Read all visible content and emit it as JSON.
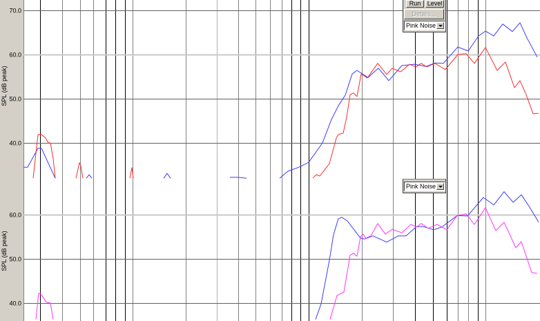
{
  "controls": {
    "run_label": "Run",
    "level_label": "Level",
    "details_label": "Details...",
    "signal_select_top": "Pink Noise",
    "signal_select_bottom": "Pink Noise"
  },
  "colors": {
    "series_blue": "#3a3aff",
    "series_red": "#ff2a2a",
    "series_magenta": "#ff33ff",
    "grid_dark": "#606060",
    "grid_light": "#c8c8c8",
    "gutter": "#d4d0c8"
  },
  "chart_data": [
    {
      "type": "line",
      "ylabel": "SPL (dB peak)",
      "ylim": [
        32,
        72.3
      ],
      "yticks": [
        "70.0",
        "60.0",
        "50.0",
        "40.0"
      ],
      "x_scale": "log (unlabeled)",
      "grid": true,
      "series": [
        {
          "color": "blue",
          "segments": [
            [
              34.5,
              34.5,
              38.8,
              38.8,
              32.0
            ],
            [
              32.0,
              32.8,
              32.0
            ],
            [
              32.0,
              33.1,
              32.0
            ],
            [
              32.2,
              32.2,
              32.0
            ],
            [
              32.0,
              33.6,
              34.5,
              35.6,
              40.0,
              45.3,
              48.4,
              50.8,
              55.6,
              56.4,
              54.8,
              56.9,
              54.1,
              57.5,
              57.8,
              57.3,
              58.1,
              58.0,
              61.7,
              60.8,
              64.2,
              65.3,
              64.2,
              66.9,
              65.2,
              67.2,
              63.8,
              59.4
            ]
          ]
        },
        {
          "color": "red",
          "segments": [
            [
              32.0,
              41.9,
              41.9,
              41.1,
              40.0,
              40.0,
              36.4,
              32.0
            ],
            [
              32.0,
              35.5,
              34.8,
              32.0
            ],
            [
              32.0,
              34.4,
              32.0
            ],
            [
              32.0,
              32.8,
              32.5,
              35.3,
              41.1,
              41.9,
              42.2,
              45.8,
              50.9,
              51.3,
              50.5,
              55.6,
              54.7,
              58.0,
              55.5,
              56.9,
              56.1,
              57.8,
              57.2,
              58.0,
              57.2,
              58.0,
              56.6,
              60.0,
              60.2,
              58.0,
              61.6,
              56.4,
              58.3,
              52.5,
              54.1,
              50.9,
              46.6,
              46.7
            ]
          ]
        }
      ]
    },
    {
      "type": "line",
      "ylabel": "SPL (dB peak)",
      "ylim": [
        36,
        67.7
      ],
      "yticks": [
        "60.0",
        "50.0",
        "40.0"
      ],
      "x_scale": "log (unlabeled)",
      "grid": true,
      "series": [
        {
          "color": "blue",
          "segments": [
            [
              36.3,
              39.8,
              49.7,
              55.5,
              59.1,
              59.4,
              58.6,
              54.7,
              54.5,
              55.2,
              53.8,
              55.2,
              55.2,
              57.3,
              57.3,
              56.6,
              57.2,
              59.8,
              59.7,
              63.9,
              62.2,
              65.2,
              62.8,
              64.5,
              61.7,
              58.3
            ]
          ]
        },
        {
          "color": "magenta",
          "segments": [
            [
              36.3,
              42.2,
              41.9,
              40.2,
              40.0,
              36.3
            ],
            [
              36.3,
              41.7,
              42.5,
              50.8,
              51.3,
              50.6,
              55.0,
              55.6,
              54.7,
              55.2,
              58.0,
              55.6,
              56.7,
              55.9,
              57.8,
              57.2,
              58.0,
              56.9,
              57.8,
              56.6,
              59.8,
              60.2,
              57.8,
              61.6,
              56.4,
              58.3,
              52.5,
              53.9,
              46.9,
              46.7
            ]
          ]
        }
      ]
    }
  ]
}
